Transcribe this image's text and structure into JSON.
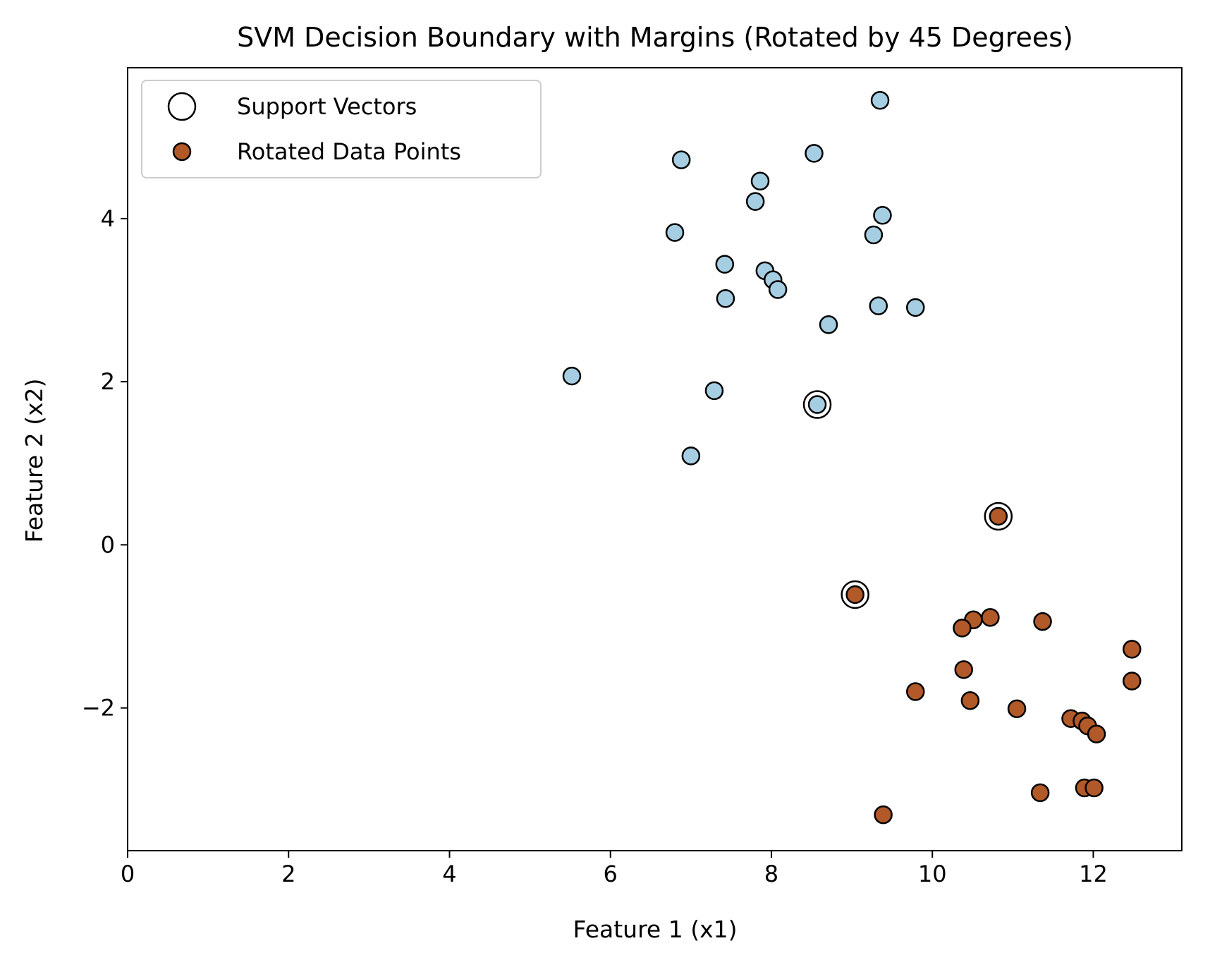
{
  "chart_data": {
    "type": "scatter",
    "title": "SVM Decision Boundary with Margins (Rotated by 45 Degrees)",
    "xlabel": "Feature 1 (x1)",
    "ylabel": "Feature 2 (x2)",
    "xlim": [
      0,
      13.1
    ],
    "ylim": [
      -3.75,
      5.85
    ],
    "xticks": [
      0,
      2,
      4,
      6,
      8,
      10,
      12
    ],
    "xtick_labels": [
      "0",
      "2",
      "4",
      "6",
      "8",
      "10",
      "12"
    ],
    "yticks": [
      -2,
      0,
      2,
      4
    ],
    "ytick_labels": [
      "−2",
      "0",
      "2",
      "4"
    ],
    "grid": false,
    "legend_position": "upper-left",
    "colors": {
      "class_0": "#a6cee3",
      "class_1": "#b15928",
      "edge": "#000000"
    },
    "legend": [
      {
        "label": "Support Vectors",
        "marker": "hollow-circle"
      },
      {
        "label": "Rotated Data Points",
        "marker": "filled-circle",
        "color": "#b15928"
      }
    ],
    "series": [
      {
        "name": "Rotated Data Points",
        "points": [
          {
            "x": 9.35,
            "y": 5.45,
            "class": 0
          },
          {
            "x": 6.88,
            "y": 4.72,
            "class": 0
          },
          {
            "x": 8.53,
            "y": 4.8,
            "class": 0
          },
          {
            "x": 7.86,
            "y": 4.46,
            "class": 0
          },
          {
            "x": 7.8,
            "y": 4.21,
            "class": 0
          },
          {
            "x": 9.38,
            "y": 4.04,
            "class": 0
          },
          {
            "x": 6.8,
            "y": 3.83,
            "class": 0
          },
          {
            "x": 9.27,
            "y": 3.8,
            "class": 0
          },
          {
            "x": 7.42,
            "y": 3.44,
            "class": 0
          },
          {
            "x": 7.92,
            "y": 3.36,
            "class": 0
          },
          {
            "x": 8.02,
            "y": 3.25,
            "class": 0
          },
          {
            "x": 8.08,
            "y": 3.13,
            "class": 0
          },
          {
            "x": 7.43,
            "y": 3.02,
            "class": 0
          },
          {
            "x": 9.33,
            "y": 2.93,
            "class": 0
          },
          {
            "x": 9.79,
            "y": 2.91,
            "class": 0
          },
          {
            "x": 8.71,
            "y": 2.7,
            "class": 0
          },
          {
            "x": 5.52,
            "y": 2.07,
            "class": 0
          },
          {
            "x": 7.29,
            "y": 1.89,
            "class": 0
          },
          {
            "x": 8.57,
            "y": 1.72,
            "class": 0
          },
          {
            "x": 7.0,
            "y": 1.09,
            "class": 0
          },
          {
            "x": 10.82,
            "y": 0.35,
            "class": 1
          },
          {
            "x": 9.04,
            "y": -0.61,
            "class": 1
          },
          {
            "x": 10.51,
            "y": -0.92,
            "class": 1
          },
          {
            "x": 10.72,
            "y": -0.89,
            "class": 1
          },
          {
            "x": 11.37,
            "y": -0.94,
            "class": 1
          },
          {
            "x": 10.37,
            "y": -1.02,
            "class": 1
          },
          {
            "x": 12.48,
            "y": -1.28,
            "class": 1
          },
          {
            "x": 10.39,
            "y": -1.53,
            "class": 1
          },
          {
            "x": 12.48,
            "y": -1.67,
            "class": 1
          },
          {
            "x": 9.79,
            "y": -1.8,
            "class": 1
          },
          {
            "x": 10.47,
            "y": -1.91,
            "class": 1
          },
          {
            "x": 11.05,
            "y": -2.01,
            "class": 1
          },
          {
            "x": 11.72,
            "y": -2.13,
            "class": 1
          },
          {
            "x": 11.86,
            "y": -2.16,
            "class": 1
          },
          {
            "x": 11.93,
            "y": -2.22,
            "class": 1
          },
          {
            "x": 12.04,
            "y": -2.32,
            "class": 1
          },
          {
            "x": 11.89,
            "y": -2.98,
            "class": 1
          },
          {
            "x": 12.01,
            "y": -2.98,
            "class": 1
          },
          {
            "x": 11.34,
            "y": -3.04,
            "class": 1
          },
          {
            "x": 9.39,
            "y": -3.31,
            "class": 1
          }
        ]
      },
      {
        "name": "Support Vectors",
        "points": [
          {
            "x": 8.57,
            "y": 1.72
          },
          {
            "x": 10.82,
            "y": 0.35
          },
          {
            "x": 9.04,
            "y": -0.61
          }
        ]
      }
    ]
  }
}
